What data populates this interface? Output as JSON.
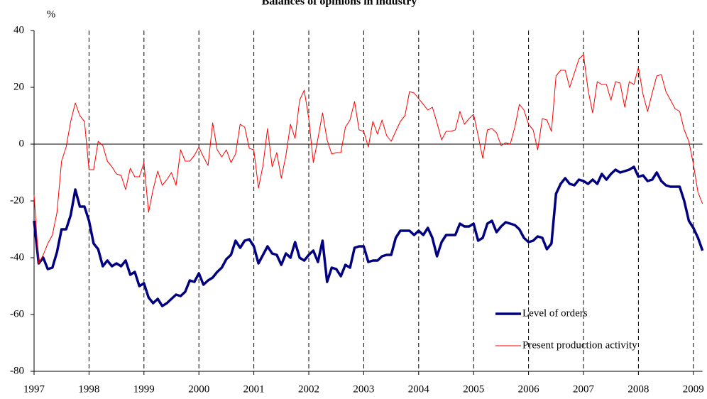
{
  "chart_data": {
    "type": "line",
    "title": "Balances of opinions in industry",
    "y_unit": "%",
    "categories": [
      "1997",
      null,
      null,
      null,
      null,
      null,
      null,
      null,
      null,
      null,
      null,
      null,
      "1998",
      null,
      null,
      null,
      null,
      null,
      null,
      null,
      null,
      null,
      null,
      null,
      "1999",
      null,
      null,
      null,
      null,
      null,
      null,
      null,
      null,
      null,
      null,
      null,
      "2000",
      null,
      null,
      null,
      null,
      null,
      null,
      null,
      null,
      null,
      null,
      null,
      "2001",
      null,
      null,
      null,
      null,
      null,
      null,
      null,
      null,
      null,
      null,
      null,
      "2002",
      null,
      null,
      null,
      null,
      null,
      null,
      null,
      null,
      null,
      null,
      null,
      "2003",
      null,
      null,
      null,
      null,
      null,
      null,
      null,
      null,
      null,
      null,
      null,
      "2004",
      null,
      null,
      null,
      null,
      null,
      null,
      null,
      null,
      null,
      null,
      null,
      "2005",
      null,
      null,
      null,
      null,
      null,
      null,
      null,
      null,
      null,
      null,
      null,
      "2006",
      null,
      null,
      null,
      null,
      null,
      null,
      null,
      null,
      null,
      null,
      null,
      "2007",
      null,
      null,
      null,
      null,
      null,
      null,
      null,
      null,
      null,
      null,
      null,
      "2008",
      null,
      null,
      null,
      null,
      null,
      null,
      null,
      null,
      null,
      null,
      null,
      "2009",
      null,
      null
    ],
    "series": [
      {
        "name": "Level of orders",
        "color": "#000080",
        "values": [
          -27,
          -42,
          -40,
          -44,
          -43.5,
          -38,
          -30,
          -30,
          -25,
          -16,
          -22,
          -22,
          -27,
          -35,
          -37,
          -43,
          -41,
          -43,
          -42,
          -43,
          -41,
          -46,
          -45,
          -50,
          -49,
          -54,
          -56,
          -54.5,
          -57,
          -56,
          -54.5,
          -53,
          -53.5,
          -52,
          -48,
          -48.5,
          -45.5,
          -49.5,
          -48,
          -47,
          -45,
          -43.5,
          -40.5,
          -39,
          -34,
          -36.5,
          -34,
          -33.5,
          -36,
          -42,
          -39,
          -36,
          -38.5,
          -39,
          -42.5,
          -38.5,
          -40,
          -34.5,
          -40,
          -41,
          -39,
          -37.5,
          -41.5,
          -34,
          -48.5,
          -43.5,
          -44,
          -46.5,
          -42.5,
          -43.5,
          -36.5,
          -36,
          -36,
          -41.5,
          -41,
          -41,
          -39.5,
          -39,
          -39,
          -33,
          -30.5,
          -30.5,
          -30.5,
          -32,
          -30.5,
          -32,
          -29.5,
          -33,
          -39.5,
          -34.5,
          -32,
          -32,
          -32,
          -28,
          -29,
          -29,
          -28,
          -34,
          -33,
          -28,
          -27,
          -31,
          -29,
          -27.5,
          -28,
          -28.5,
          -30,
          -33,
          -34.5,
          -34,
          -32.5,
          -33,
          -37,
          -35,
          -17.5,
          -14,
          -12,
          -14,
          -14.5,
          -12.5,
          -13,
          -14,
          -12.5,
          -14,
          -10.5,
          -12.5,
          -10.5,
          -9,
          -10,
          -9.5,
          -9,
          -8,
          -11.5,
          -11,
          -13,
          -12.5,
          -10,
          -13,
          -14.5,
          -15,
          -15,
          -15,
          -20,
          -27,
          -29.5,
          -33,
          -37.5
        ]
      },
      {
        "name": "Present production activity",
        "color": "#ff0000",
        "values": [
          -18,
          -42,
          -39,
          -35,
          -32,
          -24,
          -6,
          -1,
          8,
          14.5,
          10,
          8,
          -9,
          -9,
          1,
          -0.5,
          -6,
          -8,
          -10.5,
          -11,
          -16,
          -8.5,
          -11.5,
          -11.5,
          -6.5,
          -24,
          -16,
          -9.5,
          -14.5,
          -12.5,
          -10,
          -14.5,
          -2,
          -6,
          -6,
          -4,
          -1,
          -4.5,
          -7.5,
          7.5,
          -2,
          -4.5,
          -2,
          -6.5,
          -3.5,
          7,
          6,
          -1.5,
          -2,
          -15.5,
          -7.5,
          5.5,
          -8,
          -3,
          -12,
          -4,
          7,
          2,
          15.5,
          19,
          9,
          -6.5,
          2,
          11,
          1.5,
          -3.5,
          -3,
          -3,
          6,
          8.5,
          15,
          5,
          4.5,
          -1,
          8,
          3.5,
          8.5,
          3,
          1,
          4.5,
          8,
          10,
          18.5,
          18,
          16,
          14,
          12,
          13,
          7.5,
          1.5,
          4.5,
          4.5,
          5,
          11.5,
          7,
          9,
          10.5,
          3,
          -5,
          5,
          5.5,
          4,
          -0.5,
          0.5,
          0,
          6,
          14,
          12,
          7,
          5,
          -2,
          9,
          8.5,
          4.5,
          24,
          26,
          26,
          20,
          25,
          30,
          31.5,
          19,
          11,
          22,
          21,
          21,
          15.5,
          22,
          21.5,
          13,
          22,
          21,
          27,
          17.5,
          11.5,
          18,
          24,
          24.5,
          18.5,
          15.5,
          12.5,
          11.5,
          5,
          1,
          -7,
          -17,
          -21
        ]
      }
    ],
    "ylim": [
      -80,
      40
    ],
    "yticks": [
      40,
      20,
      0,
      -20,
      -40,
      -60,
      -80
    ],
    "zero_line": true,
    "dashed_year_lines": true,
    "legend": "bottom-right"
  }
}
